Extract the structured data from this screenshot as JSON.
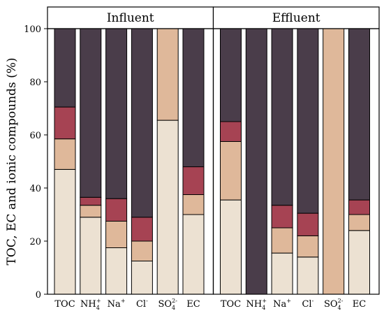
{
  "chart_data": {
    "type": "bar",
    "stacked": true,
    "ylabel": "TOC, EC and ionic compounds (%)",
    "ylim": [
      0,
      100
    ],
    "yticks": [
      0,
      20,
      40,
      60,
      80,
      100
    ],
    "colors": [
      "#ece1d2",
      "#dfb89a",
      "#a64353",
      "#4a3d4a"
    ],
    "panels": [
      {
        "title": "Influent",
        "categories": [
          {
            "base": "TOC",
            "sub": "",
            "sup": ""
          },
          {
            "base": "NH",
            "sub": "4",
            "sup": "+"
          },
          {
            "base": "Na",
            "sub": "",
            "sup": "+"
          },
          {
            "base": "Cl",
            "sub": "",
            "sup": "-"
          },
          {
            "base": "SO",
            "sub": "4",
            "sup": "2-"
          },
          {
            "base": "EC",
            "sub": "",
            "sup": ""
          }
        ],
        "segments": [
          [
            47,
            11.5,
            12,
            29.5
          ],
          [
            29,
            4.5,
            3,
            63.5
          ],
          [
            17.5,
            10,
            8.5,
            64
          ],
          [
            12.5,
            7.5,
            9,
            71
          ],
          [
            65.5,
            34.5,
            0,
            0
          ],
          [
            30,
            7.5,
            10.5,
            52
          ]
        ]
      },
      {
        "title": "Effluent",
        "categories": [
          {
            "base": "TOC",
            "sub": "",
            "sup": ""
          },
          {
            "base": "NH",
            "sub": "4",
            "sup": "+"
          },
          {
            "base": "Na",
            "sub": "",
            "sup": "+"
          },
          {
            "base": "Cl",
            "sub": "",
            "sup": "-"
          },
          {
            "base": "SO",
            "sub": "4",
            "sup": "2-"
          },
          {
            "base": "EC",
            "sub": "",
            "sup": ""
          }
        ],
        "segments": [
          [
            35.5,
            22,
            7.5,
            35
          ],
          [
            0,
            0,
            0,
            100
          ],
          [
            15.5,
            9.5,
            8.5,
            66.5
          ],
          [
            14,
            8,
            8.5,
            69.5
          ],
          [
            0,
            100,
            0,
            0
          ],
          [
            24,
            6,
            5.5,
            64.5
          ]
        ]
      }
    ]
  }
}
